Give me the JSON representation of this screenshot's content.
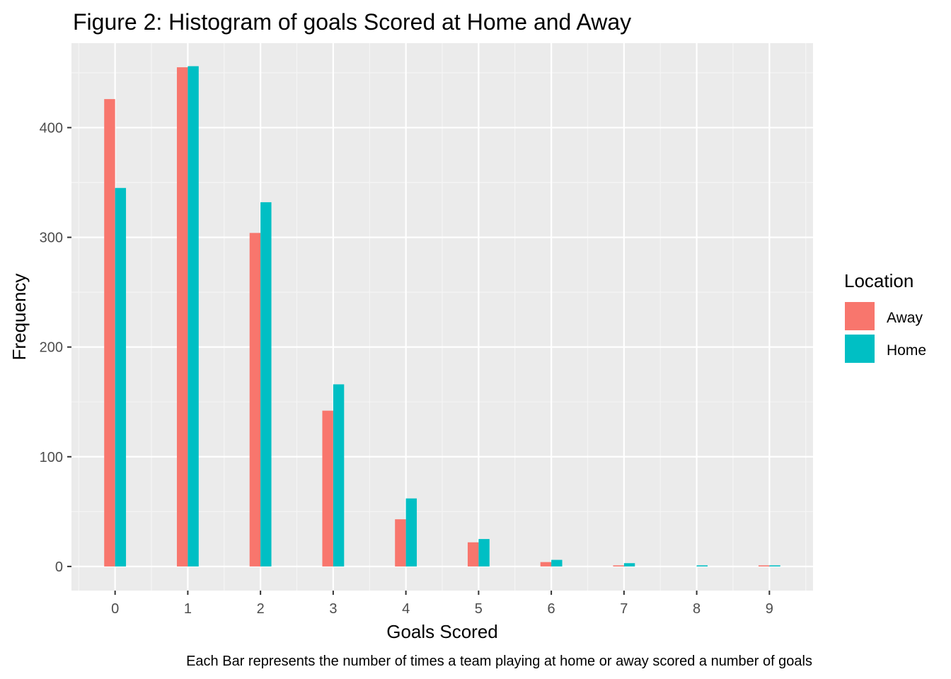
{
  "chart_data": {
    "type": "bar",
    "title": "Figure 2: Histogram of goals Scored at Home and Away",
    "xlabel": "Goals Scored",
    "ylabel": "Frequency",
    "caption": "Each Bar represents the number of times a team playing at home or away scored a number of goals",
    "xlim": [
      -0.6,
      9.6
    ],
    "ylim": [
      -22,
      477
    ],
    "x_ticks": [
      0,
      1,
      2,
      3,
      4,
      5,
      6,
      7,
      8,
      9
    ],
    "y_ticks": [
      0,
      100,
      200,
      300,
      400
    ],
    "legend": {
      "title": "Location",
      "position": "right"
    },
    "grid": true,
    "series": [
      {
        "name": "Away",
        "color": "#F8766D",
        "points": [
          {
            "x": 0,
            "y": 426
          },
          {
            "x": 1,
            "y": 455
          },
          {
            "x": 2,
            "y": 304
          },
          {
            "x": 3,
            "y": 142
          },
          {
            "x": 4,
            "y": 43
          },
          {
            "x": 5,
            "y": 22
          },
          {
            "x": 6,
            "y": 4
          },
          {
            "x": 7,
            "y": 1
          },
          {
            "x": 9,
            "y": 1
          }
        ]
      },
      {
        "name": "Home",
        "color": "#00BFC4",
        "points": [
          {
            "x": 0,
            "y": 345
          },
          {
            "x": 1,
            "y": 456
          },
          {
            "x": 2,
            "y": 332
          },
          {
            "x": 3,
            "y": 166
          },
          {
            "x": 4,
            "y": 62
          },
          {
            "x": 5,
            "y": 25
          },
          {
            "x": 6,
            "y": 6
          },
          {
            "x": 7,
            "y": 3
          },
          {
            "x": 8,
            "y": 1
          },
          {
            "x": 9,
            "y": 1
          }
        ]
      }
    ]
  }
}
